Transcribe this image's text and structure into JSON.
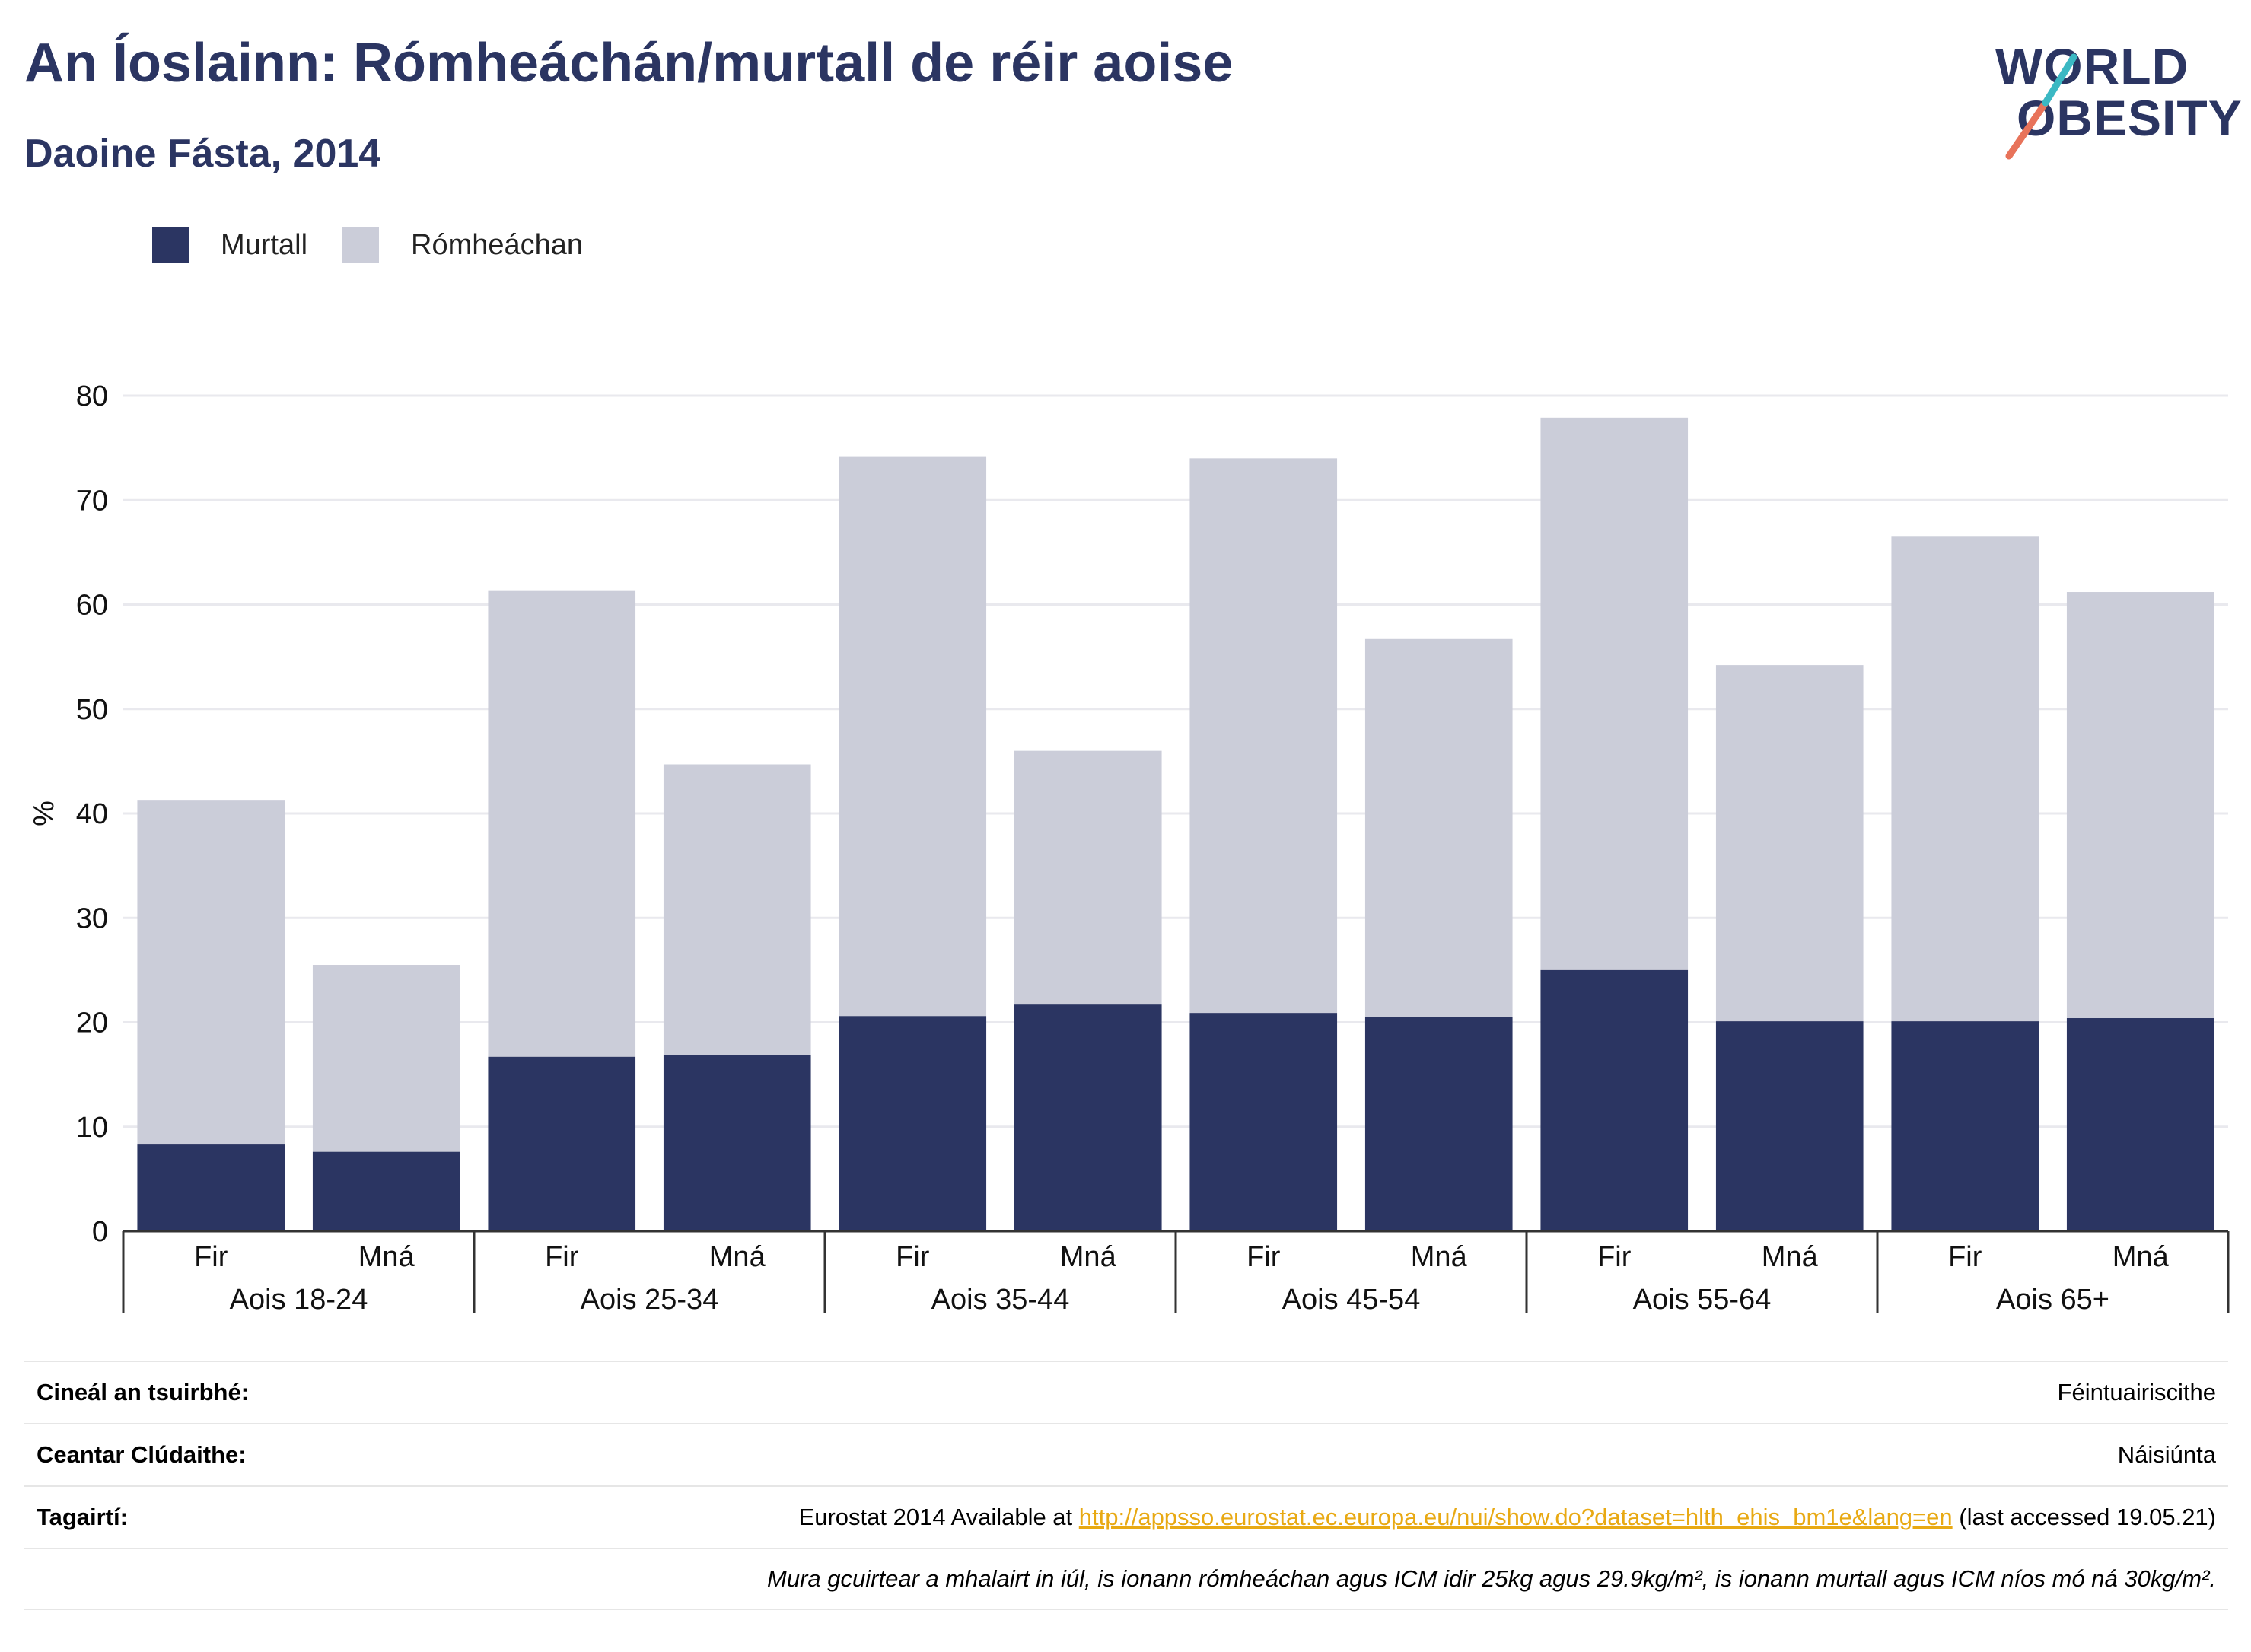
{
  "header": {
    "title": "An Íoslainn: Rómheáchán/murtall de réir aoise",
    "subtitle": "Daoine Fásta, 2014"
  },
  "logo": {
    "line1": "WORLD",
    "line2": "OBESITY"
  },
  "colors": {
    "obesity": "#2b3562",
    "overweight": "#cbcdd9",
    "title": "#2b3562",
    "link": "#e8a913"
  },
  "chart_data": {
    "type": "bar",
    "stacked": true,
    "ylabel": "%",
    "ylim": [
      0,
      80
    ],
    "yticks": [
      0,
      10,
      20,
      30,
      40,
      50,
      60,
      70,
      80
    ],
    "grid": true,
    "legend_position": "top-left",
    "groups": [
      "Aois 18-24",
      "Aois 25-34",
      "Aois 35-44",
      "Aois 45-54",
      "Aois 55-64",
      "Aois 65+"
    ],
    "subcategories": [
      "Fir",
      "Mná"
    ],
    "series": [
      {
        "name": "Murtall",
        "color": "#2b3562",
        "values": [
          8.3,
          7.6,
          16.7,
          16.9,
          20.6,
          21.7,
          20.9,
          20.5,
          25.0,
          20.1,
          20.1,
          20.4
        ]
      },
      {
        "name": "Rómheáchan",
        "color": "#cbcdd9",
        "values": [
          33.0,
          17.9,
          44.6,
          27.8,
          53.6,
          24.3,
          53.1,
          36.2,
          52.9,
          34.1,
          46.4,
          40.8
        ]
      }
    ]
  },
  "info": {
    "survey_type": {
      "label": "Cineál an tsuirbhé:",
      "value": "Féintuairiscithe"
    },
    "coverage": {
      "label": "Ceantar Clúdaithe:",
      "value": "Náisiúnta"
    },
    "references": {
      "label": "Tagairtí:",
      "prefix": "Eurostat 2014 Available at ",
      "link": "http://appsso.eurostat.ec.europa.eu/nui/show.do?dataset=hlth_ehis_bm1e&lang=en",
      "suffix": " (last accessed 19.05.21)"
    },
    "note": "Mura gcuirtear a mhalairt in iúl, is ionann rómheáchan agus ICM idir 25kg agus 29.9kg/m², is ionann murtall agus ICM níos mó ná 30kg/m²."
  }
}
